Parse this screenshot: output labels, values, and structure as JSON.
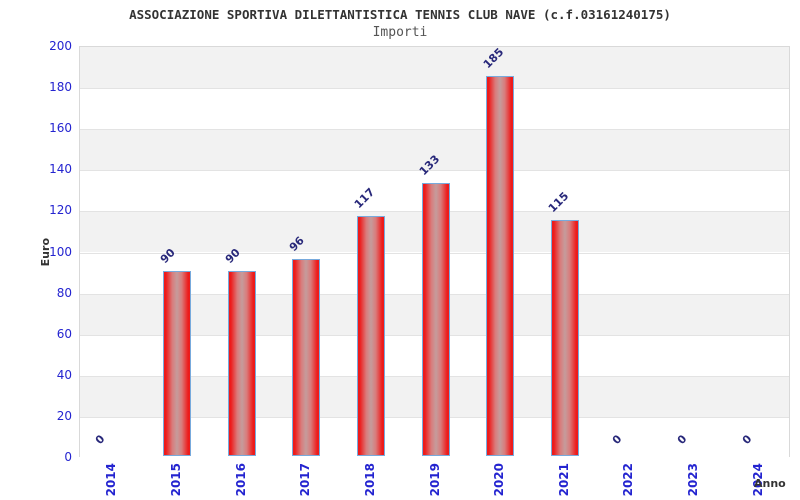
{
  "header": {
    "title": "ASSOCIAZIONE SPORTIVA DILETTANTISTICA TENNIS CLUB NAVE (c.f.03161240175)",
    "subtitle": "Importi"
  },
  "chart_data": {
    "type": "bar",
    "title": "ASSOCIAZIONE SPORTIVA DILETTANTISTICA TENNIS CLUB NAVE (c.f.03161240175)",
    "subtitle": "Importi",
    "xlabel": "Anno",
    "ylabel": "Euro",
    "categories": [
      "2014",
      "2015",
      "2016",
      "2017",
      "2018",
      "2019",
      "2020",
      "2021",
      "2022",
      "2023",
      "2024"
    ],
    "values": [
      0,
      90,
      90,
      96,
      117,
      133,
      185,
      115,
      0,
      0,
      0
    ],
    "ylim": [
      0,
      200
    ],
    "ytick_step": 20,
    "yticks": [
      0,
      20,
      40,
      60,
      80,
      100,
      120,
      140,
      160,
      180,
      200
    ],
    "grid": true,
    "legend_position": "none",
    "colors": {
      "bar_edge_red": "#ed1b1b",
      "bar_center": "#c59c9c",
      "bar_border": "#77aadd",
      "axis_tick_label": "#2424d0",
      "data_label": "#28287a",
      "band_shaded": "#f2f2f2",
      "band_plain": "#ffffff",
      "gridline": "#e3e3e3",
      "plot_border": "#d9d9d9",
      "title_color": "#333333"
    }
  }
}
